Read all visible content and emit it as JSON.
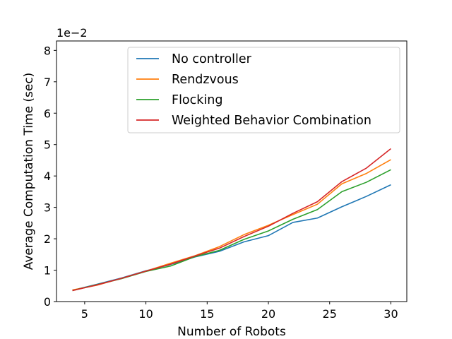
{
  "chart_data": {
    "type": "line",
    "title": "",
    "xlabel": "Number of Robots",
    "ylabel": "Average Computation Time (sec)",
    "y_offset_label": "1e−2",
    "xlim": [
      2.7,
      31.3
    ],
    "ylim": [
      0,
      8.3
    ],
    "xticks": [
      5,
      10,
      15,
      20,
      25,
      30
    ],
    "yticks": [
      0,
      1,
      2,
      3,
      4,
      5,
      6,
      7,
      8
    ],
    "legend_position": "top-right",
    "grid": false,
    "x": [
      4,
      6,
      8,
      10,
      12,
      14,
      16,
      18,
      20,
      22,
      24,
      26,
      28,
      30
    ],
    "series": [
      {
        "name": "No controller",
        "color": "#1f77b4",
        "values": [
          0.36,
          0.55,
          0.75,
          0.98,
          1.18,
          1.42,
          1.6,
          1.9,
          2.1,
          2.52,
          2.66,
          3.02,
          3.35,
          3.72
        ]
      },
      {
        "name": "Rendzvous",
        "color": "#ff7f0e",
        "values": [
          0.37,
          0.52,
          0.74,
          0.97,
          1.22,
          1.46,
          1.75,
          2.13,
          2.43,
          2.77,
          3.1,
          3.75,
          4.08,
          4.52
        ]
      },
      {
        "name": "Flocking",
        "color": "#2ca02c",
        "values": [
          0.35,
          0.54,
          0.73,
          0.96,
          1.13,
          1.43,
          1.63,
          1.98,
          2.25,
          2.62,
          2.93,
          3.5,
          3.8,
          4.2
        ]
      },
      {
        "name": "Weighted Behavior Combination",
        "color": "#d62728",
        "values": [
          0.35,
          0.53,
          0.74,
          0.97,
          1.19,
          1.45,
          1.7,
          2.07,
          2.4,
          2.81,
          3.18,
          3.82,
          4.25,
          4.87
        ]
      }
    ]
  }
}
